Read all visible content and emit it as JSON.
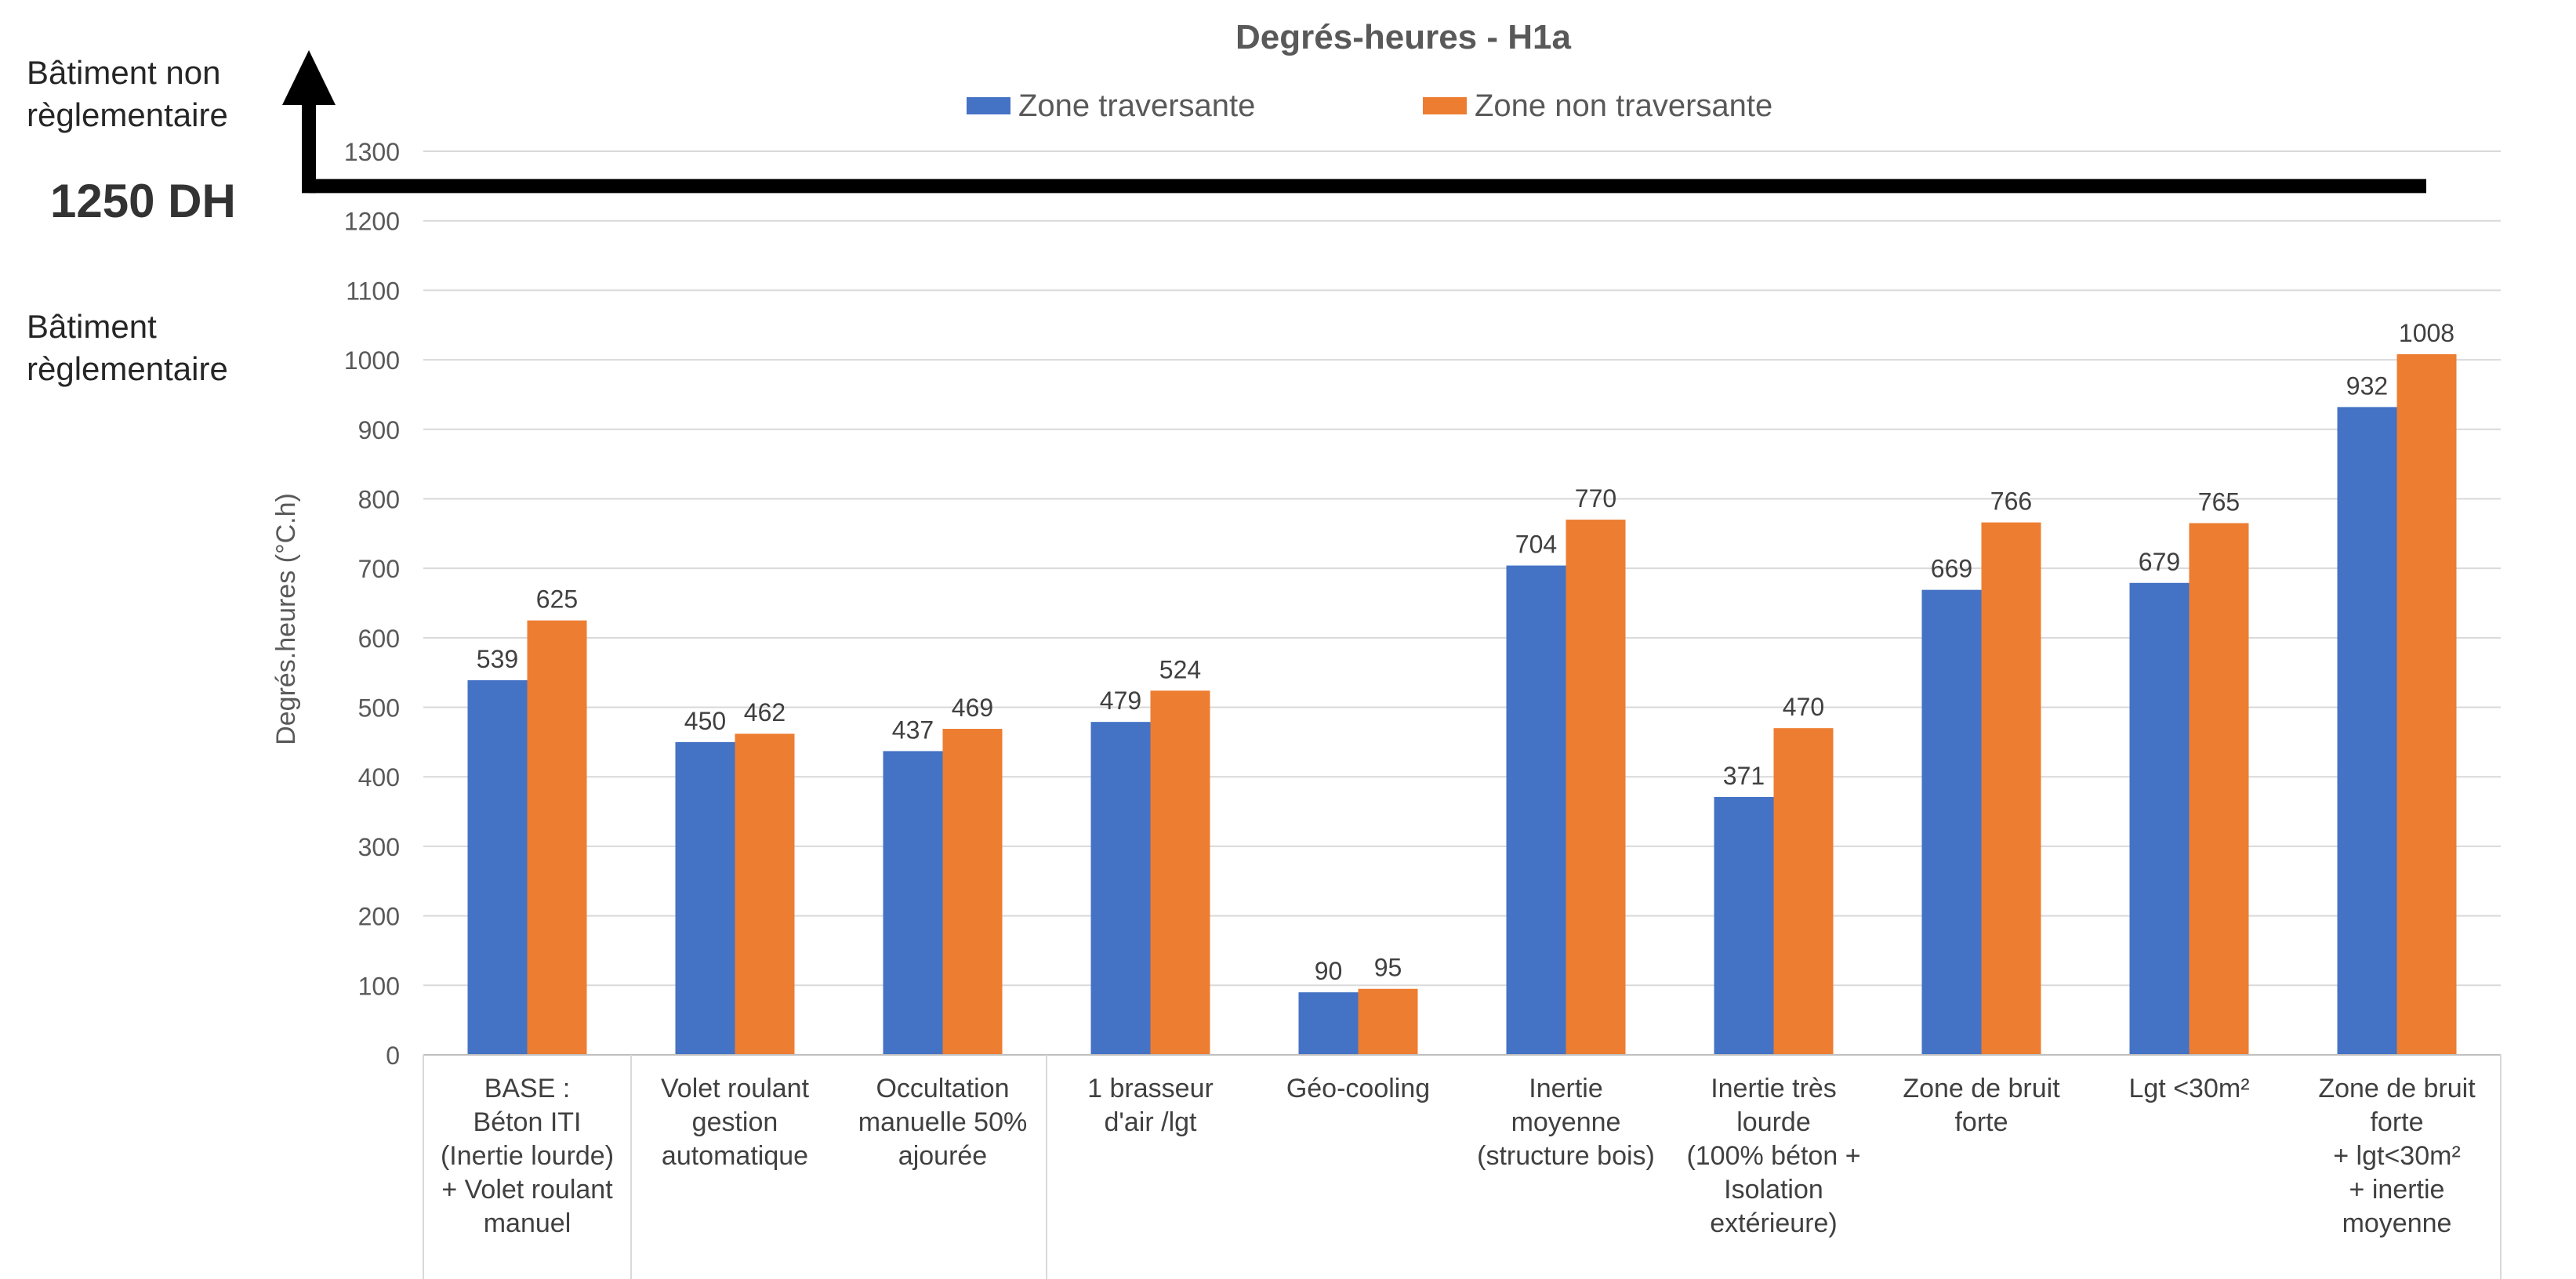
{
  "colors": {
    "series_blue": "#4472C4",
    "series_orange": "#ED7D31",
    "gridline": "#D9D9D9",
    "threshold_line": "#000000"
  },
  "annotations": {
    "non_regulatory": "Bâtiment non\nrèglementaire",
    "threshold": "1250 DH",
    "regulatory": "Bâtiment\nrèglementaire"
  },
  "chart_data": {
    "type": "bar",
    "title": "Degrés-heures - H1a",
    "ylabel": "Degrés.heures (°C.h)",
    "xlabel": "",
    "ylim": [
      0,
      1300
    ],
    "yticks": [
      0,
      100,
      200,
      300,
      400,
      500,
      600,
      700,
      800,
      900,
      1000,
      1100,
      1200,
      1300
    ],
    "grid": true,
    "legend": "top-center",
    "threshold_value": 1250,
    "categories": [
      "BASE :\nBéton ITI\n(Inertie lourde)\n+ Volet roulant\nmanuel",
      "Volet roulant\ngestion\nautomatique",
      "Occultation\nmanuelle 50%\najourée",
      "1 brasseur\nd'air /lgt",
      "Géo-cooling",
      "Inertie\nmoyenne\n(structure bois)",
      "Inertie très\nlourde\n(100% béton +\nIsolation\nextérieure)",
      "Zone de bruit\nforte",
      "Lgt <30m²",
      "Zone de bruit\nforte\n+ lgt<30m²\n+ inertie\nmoyenne"
    ],
    "series": [
      {
        "name": "Zone traversante",
        "color": "#4472C4",
        "values": [
          539,
          450,
          437,
          479,
          90,
          704,
          371,
          669,
          679,
          932
        ]
      },
      {
        "name": "Zone non traversante",
        "color": "#ED7D31",
        "values": [
          625,
          462,
          469,
          524,
          95,
          770,
          470,
          766,
          765,
          1008
        ]
      }
    ]
  }
}
